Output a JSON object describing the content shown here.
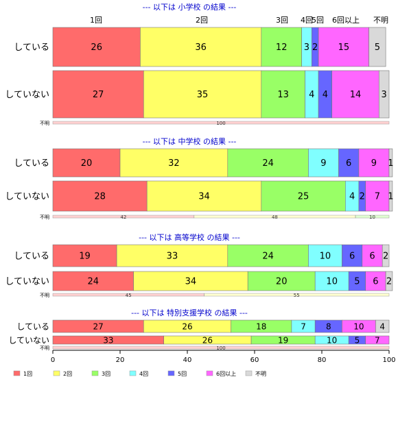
{
  "colors": {
    "cat": [
      "#FF6B6B",
      "#FFFF66",
      "#99FF66",
      "#80FFFF",
      "#6666FF",
      "#FF66FF",
      "#D9D9D9"
    ],
    "title": "#0000CC",
    "border": "#999999",
    "text": "#000000"
  },
  "chart_data": {
    "type": "bar",
    "orientation": "horizontal",
    "stacked": true,
    "xlim": [
      0,
      100
    ],
    "x_ticks": [
      "0",
      "20",
      "40",
      "60",
      "80",
      "100"
    ],
    "categories_top_labels": [
      "1回",
      "2回",
      "3回",
      "4回",
      "5回",
      "6回以上",
      "不明"
    ],
    "legend": [
      "1回",
      "2回",
      "3回",
      "4回",
      "5回",
      "6回以上",
      "不明"
    ],
    "legend_position": "bottom",
    "panels": [
      {
        "title": "--- 以下は 小学校 の結果 ---",
        "rows": [
          {
            "label": "している",
            "values": [
              26,
              36,
              12,
              3,
              2,
              15,
              5
            ]
          },
          {
            "label": "していない",
            "values": [
              27,
              35,
              13,
              4,
              4,
              14,
              3
            ]
          }
        ],
        "unknown": {
          "label": "不明",
          "values": [
            100
          ],
          "texts": [
            "100"
          ]
        }
      },
      {
        "title": "--- 以下は 中学校 の結果 ---",
        "rows": [
          {
            "label": "している",
            "values": [
              20,
              32,
              24,
              9,
              6,
              9,
              1
            ]
          },
          {
            "label": "していない",
            "values": [
              28,
              34,
              25,
              4,
              2,
              7,
              1
            ]
          }
        ],
        "unknown": {
          "label": "不明",
          "values": [
            42,
            48,
            10
          ],
          "texts": [
            "42",
            "48",
            "10"
          ]
        }
      },
      {
        "title": "--- 以下は 高等学校 の結果 ---",
        "rows": [
          {
            "label": "している",
            "values": [
              19,
              33,
              24,
              10,
              6,
              6,
              2
            ]
          },
          {
            "label": "していない",
            "values": [
              24,
              34,
              20,
              10,
              5,
              6,
              2
            ]
          }
        ],
        "unknown": {
          "label": "不明",
          "values": [
            45,
            55
          ],
          "texts": [
            "45",
            "55"
          ]
        }
      },
      {
        "title": "--- 以下は 特別支援学校 の結果 ---",
        "rows": [
          {
            "label": "している",
            "values": [
              27,
              26,
              18,
              7,
              8,
              10,
              4
            ]
          },
          {
            "label": "していない",
            "values": [
              33,
              26,
              19,
              10,
              5,
              7,
              0
            ]
          }
        ],
        "unknown": {
          "label": "不明",
          "values": [
            100
          ],
          "texts": [
            "100"
          ]
        }
      }
    ]
  }
}
